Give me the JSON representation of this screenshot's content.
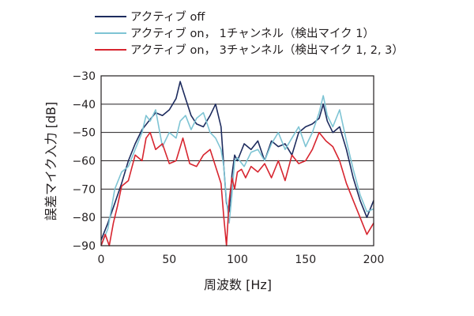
{
  "chart_data": {
    "type": "line",
    "xlabel": "周波数  [Hz]",
    "ylabel": "誤差マイク入力  [dB]",
    "xlim": [
      0,
      200
    ],
    "ylim": [
      -90,
      -30
    ],
    "x_ticks": [
      "0",
      "50",
      "100",
      "150",
      "200"
    ],
    "y_ticks": [
      "−30",
      "−40",
      "−50",
      "−60",
      "−70",
      "−80",
      "−90"
    ],
    "grid": "horizontal",
    "legend_position": "top",
    "series": [
      {
        "name": "アクティブ off",
        "color": "#1d2b5e",
        "x": [
          0,
          5,
          10,
          15,
          20,
          25,
          30,
          35,
          40,
          45,
          50,
          55,
          58,
          62,
          66,
          70,
          75,
          80,
          84,
          88,
          90,
          92,
          94,
          96,
          98,
          100,
          105,
          110,
          115,
          120,
          125,
          130,
          135,
          140,
          145,
          150,
          155,
          160,
          163,
          166,
          170,
          175,
          180,
          185,
          190,
          195,
          200
        ],
        "y": [
          -88,
          -82,
          -75,
          -68,
          -60,
          -54,
          -49,
          -46,
          -43,
          -44,
          -42,
          -38,
          -32,
          -38,
          -44,
          -47,
          -48,
          -44,
          -40,
          -48,
          -62,
          -75,
          -78,
          -65,
          -58,
          -60,
          -54,
          -56,
          -53,
          -60,
          -53,
          -55,
          -54,
          -58,
          -50,
          -48,
          -47,
          -45,
          -40,
          -46,
          -50,
          -48,
          -56,
          -66,
          -74,
          -80,
          -74
        ]
      },
      {
        "name": "アクティブ on， 1チャンネル（検出マイク 1）",
        "color": "#7ec4d4",
        "x": [
          0,
          5,
          10,
          15,
          20,
          25,
          30,
          33,
          36,
          40,
          45,
          50,
          55,
          58,
          62,
          66,
          70,
          75,
          80,
          84,
          88,
          90,
          92,
          94,
          96,
          98,
          100,
          105,
          110,
          115,
          120,
          125,
          130,
          135,
          140,
          145,
          150,
          155,
          160,
          163,
          166,
          170,
          175,
          180,
          185,
          190,
          195,
          200
        ],
        "y": [
          -90,
          -84,
          -70,
          -64,
          -62,
          -56,
          -50,
          -44,
          -46,
          -42,
          -55,
          -50,
          -52,
          -46,
          -44,
          -49,
          -45,
          -43,
          -50,
          -52,
          -56,
          -62,
          -74,
          -82,
          -72,
          -60,
          -59,
          -62,
          -57,
          -56,
          -60,
          -54,
          -50,
          -56,
          -52,
          -48,
          -55,
          -50,
          -43,
          -37,
          -44,
          -48,
          -42,
          -53,
          -63,
          -72,
          -78,
          -77
        ]
      },
      {
        "name": "アクティブ on， 3チャンネル（検出マイク 1, 2, 3）",
        "color": "#d7252f",
        "x": [
          0,
          3,
          6,
          9,
          12,
          15,
          20,
          25,
          30,
          33,
          36,
          40,
          45,
          50,
          55,
          60,
          65,
          70,
          75,
          80,
          84,
          88,
          90,
          92,
          94,
          96,
          98,
          100,
          103,
          106,
          110,
          115,
          120,
          125,
          130,
          135,
          140,
          145,
          150,
          155,
          160,
          165,
          170,
          175,
          180,
          185,
          190,
          195,
          200
        ],
        "y": [
          -90,
          -86,
          -90,
          -82,
          -76,
          -69,
          -67,
          -58,
          -60,
          -52,
          -50,
          -56,
          -54,
          -61,
          -60,
          -52,
          -61,
          -62,
          -58,
          -56,
          -62,
          -68,
          -80,
          -90,
          -74,
          -66,
          -70,
          -64,
          -63,
          -66,
          -62,
          -64,
          -61,
          -66,
          -60,
          -67,
          -58,
          -61,
          -60,
          -56,
          -50,
          -53,
          -55,
          -60,
          -68,
          -74,
          -80,
          -86,
          -82
        ]
      }
    ]
  }
}
